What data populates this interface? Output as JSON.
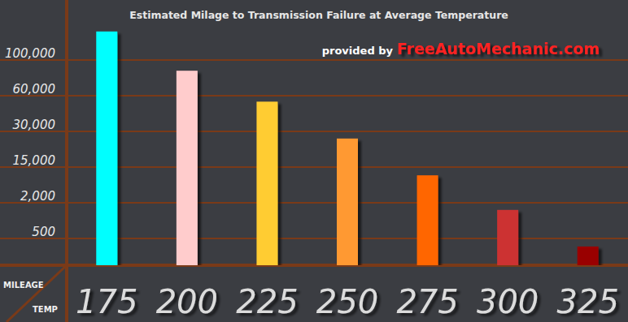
{
  "chart_data": {
    "type": "bar",
    "title": "Estimated Milage to Transmission Failure at Average Temperature",
    "subtitle": "provided by",
    "annotations": [
      "FreeAutoMechanic.com"
    ],
    "x_label": "TEMP",
    "y_label": "MILEAGE",
    "categories": [
      "175",
      "200",
      "225",
      "250",
      "275",
      "300",
      "325"
    ],
    "values": [
      140000,
      88000,
      55000,
      27000,
      12000,
      1700,
      350
    ],
    "colors": [
      "#00ffff",
      "#ffcccc",
      "#ffcc33",
      "#ff9933",
      "#ff6600",
      "#cc3333",
      "#990000"
    ],
    "ylim": [
      0,
      150000
    ],
    "yticks": [
      500,
      {
        "value": 2000,
        "label": "2,000"
      },
      {
        "value": 15000,
        "label": "15,000"
      },
      {
        "value": 30000,
        "label": "30,000"
      },
      {
        "value": 60000,
        "label": "60,000"
      },
      {
        "value": 100000,
        "label": "100,000"
      }
    ],
    "grid": true
  }
}
